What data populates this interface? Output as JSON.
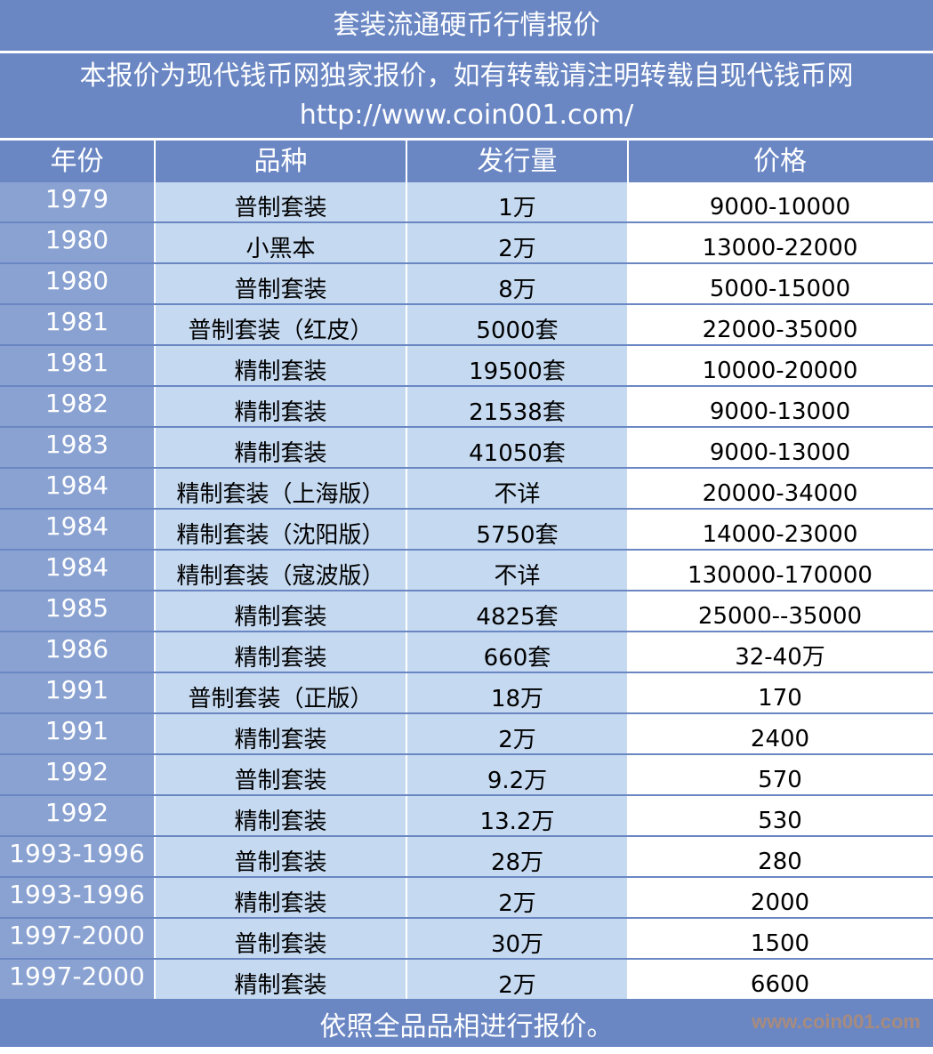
{
  "title": "套装流通硬币行情报价",
  "subtitle_line1": "本报价为现代钱币网独家报价，如有转载请注明转载自现代钱币网",
  "subtitle_line2": "http://www.coin001.com/",
  "headers": [
    "年份",
    "品种",
    "发行量",
    "价格"
  ],
  "rows": [
    [
      "1979",
      "普制套装",
      "1万",
      "9000-10000"
    ],
    [
      "1980",
      "小黑本",
      "2万",
      "13000-22000"
    ],
    [
      "1980",
      "普制套装",
      "8万",
      "5000-15000"
    ],
    [
      "1981",
      "普制套装（红皮）",
      "5000套",
      "22000-35000"
    ],
    [
      "1981",
      "精制套装",
      "19500套",
      "10000-20000"
    ],
    [
      "1982",
      "精制套装",
      "21538套",
      "9000-13000"
    ],
    [
      "1983",
      "精制套装",
      "41050套",
      "9000-13000"
    ],
    [
      "1984",
      "精制套装（上海版）",
      "不详",
      "20000-34000"
    ],
    [
      "1984",
      "精制套装（沈阳版）",
      "5750套",
      "14000-23000"
    ],
    [
      "1984",
      "精制套装（寇波版）",
      "不详",
      "130000-170000"
    ],
    [
      "1985",
      "精制套装",
      "4825套",
      "25000--35000"
    ],
    [
      "1986",
      "精制套装",
      "660套",
      "32-40万"
    ],
    [
      "1991",
      "普制套装（正版）",
      "18万",
      "170"
    ],
    [
      "1991",
      "精制套装",
      "2万",
      "2400"
    ],
    [
      "1992",
      "普制套装",
      "9.2万",
      "570"
    ],
    [
      "1992",
      "精制套装",
      "13.2万",
      "530"
    ],
    [
      "1993-1996",
      "普制套装",
      "28万",
      "280"
    ],
    [
      "1993-1996",
      "精制套装",
      "2万",
      "2000"
    ],
    [
      "1997-2000",
      "普制套装",
      "30万",
      "1500"
    ],
    [
      "1997-2000",
      "精制套装",
      "2万",
      "6600"
    ]
  ],
  "footer": "依照全品品相进行报价。",
  "watermark": "www.coin001.com",
  "colors": {
    "header": "#6a87c4",
    "year_column": "#8aa2d2",
    "body_columns": "#c5d9f0",
    "price_column": "#ffffff"
  }
}
